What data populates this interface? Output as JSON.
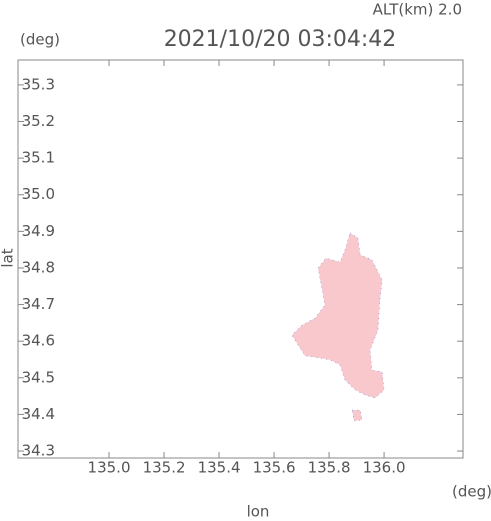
{
  "chart_data": {
    "type": "region",
    "title": "2021/10/20 03:04:42",
    "subtitle": "ALT(km) 2.0",
    "y_unit": "(deg)",
    "x_unit": "(deg)",
    "x_label": "lon",
    "y_label": "lat",
    "xlim": [
      134.669,
      136.287
    ],
    "ylim": [
      34.281,
      35.368
    ],
    "xticks": [
      {
        "value": 135.0,
        "label": "135.0"
      },
      135.2,
      135.4,
      135.6,
      135.8,
      {
        "value": 136.0,
        "label": "136.0"
      }
    ],
    "yticks": [
      34.3,
      34.4,
      34.5,
      34.6,
      34.7,
      34.8,
      34.9,
      {
        "value": 35.0,
        "label": "35.0"
      },
      35.1,
      35.2,
      35.3
    ],
    "series": [
      {
        "color": "#f8c8cd",
        "x": [
          135.876,
          135.905,
          135.913,
          135.956,
          135.993,
          135.985,
          135.978,
          135.949,
          135.956,
          135.993,
          136.0,
          135.967,
          135.931,
          135.895,
          135.858,
          135.84,
          135.804,
          135.767,
          135.713,
          135.687,
          135.665,
          135.702,
          135.749,
          135.785,
          135.775,
          135.76,
          135.789,
          135.84,
          135.858
        ],
        "values": [
          34.896,
          34.882,
          34.836,
          34.822,
          34.767,
          34.713,
          34.631,
          34.576,
          34.521,
          34.516,
          34.467,
          34.445,
          34.453,
          34.467,
          34.494,
          34.535,
          34.549,
          34.554,
          34.56,
          34.59,
          34.617,
          34.644,
          34.663,
          34.699,
          34.74,
          34.8,
          34.827,
          34.816,
          34.849
        ]
      },
      {
        "color": "#f8c8cd",
        "x": [
          135.884,
          135.913,
          135.92,
          135.891
        ],
        "values": [
          34.412,
          34.412,
          34.385,
          34.382
        ]
      }
    ]
  }
}
